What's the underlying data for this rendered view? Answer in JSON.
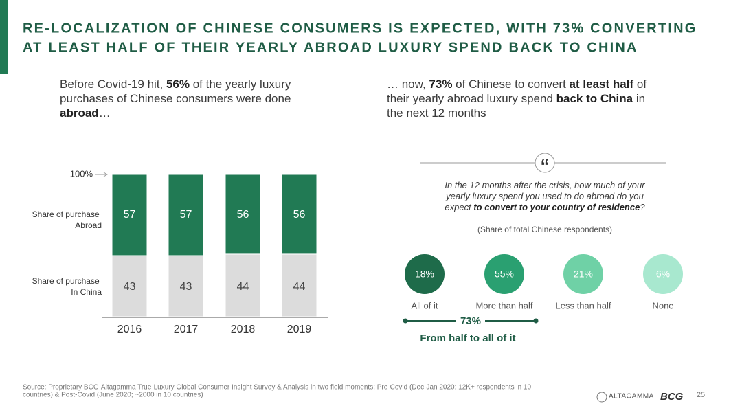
{
  "title_lines": [
    "RE-LOCALIZATION OF CHINESE CONSUMERS IS EXPECTED, WITH 73% CONVERTING",
    "AT LEAST HALF OF THEIR YEARLY ABROAD LUXURY SPEND BACK TO CHINA"
  ],
  "left_text": [
    [
      {
        "text": "Before Covid-19 hit, ",
        "bold": false
      },
      {
        "text": "56%",
        "bold": true
      },
      {
        "text": " of the yearly luxury",
        "bold": false
      }
    ],
    [
      {
        "text": "purchases of Chinese consumers were done",
        "bold": false
      }
    ],
    [
      {
        "text": "abroad",
        "bold": true
      },
      {
        "text": "…",
        "bold": false
      }
    ]
  ],
  "right_text": [
    [
      {
        "text": "… now, ",
        "bold": false
      },
      {
        "text": "73%",
        "bold": true
      },
      {
        "text": " of Chinese to convert ",
        "bold": false
      },
      {
        "text": "at least half",
        "bold": true
      },
      {
        "text": " of",
        "bold": false
      }
    ],
    [
      {
        "text": "their yearly abroad luxury spend ",
        "bold": false
      },
      {
        "text": "back to China",
        "bold": true
      },
      {
        "text": " in",
        "bold": false
      }
    ],
    [
      {
        "text": "the next 12 months",
        "bold": false
      }
    ]
  ],
  "chart_data": {
    "type": "bar",
    "stacked": true,
    "categories": [
      "2016",
      "2017",
      "2018",
      "2019"
    ],
    "series": [
      {
        "name": "Share of purchase In China",
        "color": "#dcdcdc",
        "values": [
          43,
          43,
          44,
          44
        ]
      },
      {
        "name": "Share of purchase Abroad",
        "color": "#217a54",
        "values": [
          57,
          57,
          56,
          56
        ]
      }
    ],
    "ylim": [
      0,
      100
    ],
    "yticks": [
      {
        "value": 100,
        "label": "100%"
      }
    ]
  },
  "survey": {
    "quote_mark": "“",
    "question": [
      [
        {
          "text": "In the 12 months after the crisis, how much of your",
          "bold": false
        }
      ],
      [
        {
          "text": "yearly luxury spend you used to do abroad do you",
          "bold": false
        }
      ],
      [
        {
          "text": "expect ",
          "bold": false
        },
        {
          "text": "to convert to your country of residence",
          "bold": true
        },
        {
          "text": "?",
          "bold": false
        }
      ]
    ],
    "note": "(Share of total Chinese respondents)",
    "categories": [
      "All of it",
      "More than half",
      "Less than half",
      "None"
    ],
    "values": [
      18,
      55,
      21,
      6
    ],
    "value_labels": [
      "18%",
      "55%",
      "21%",
      "6%"
    ],
    "colors": [
      "#1e6b4a",
      "#2aa071",
      "#6fd1a6",
      "#a8e8cf"
    ],
    "total": 73,
    "total_label": "73%",
    "total_caption": "From half to all of it"
  },
  "source": [
    "Source: Proprietary BCG-Altagamma True-Luxury Global Consumer Insight Survey & Analysis in two field moments: Pre-Covid (Dec-Jan 2020; 12K+ respondents in 10",
    "countries) & Post-Covid (June 2020; ~2000 in 10 countries)"
  ],
  "logos": [
    "ALTAGAMMA",
    "BCG"
  ],
  "page_number": "25"
}
